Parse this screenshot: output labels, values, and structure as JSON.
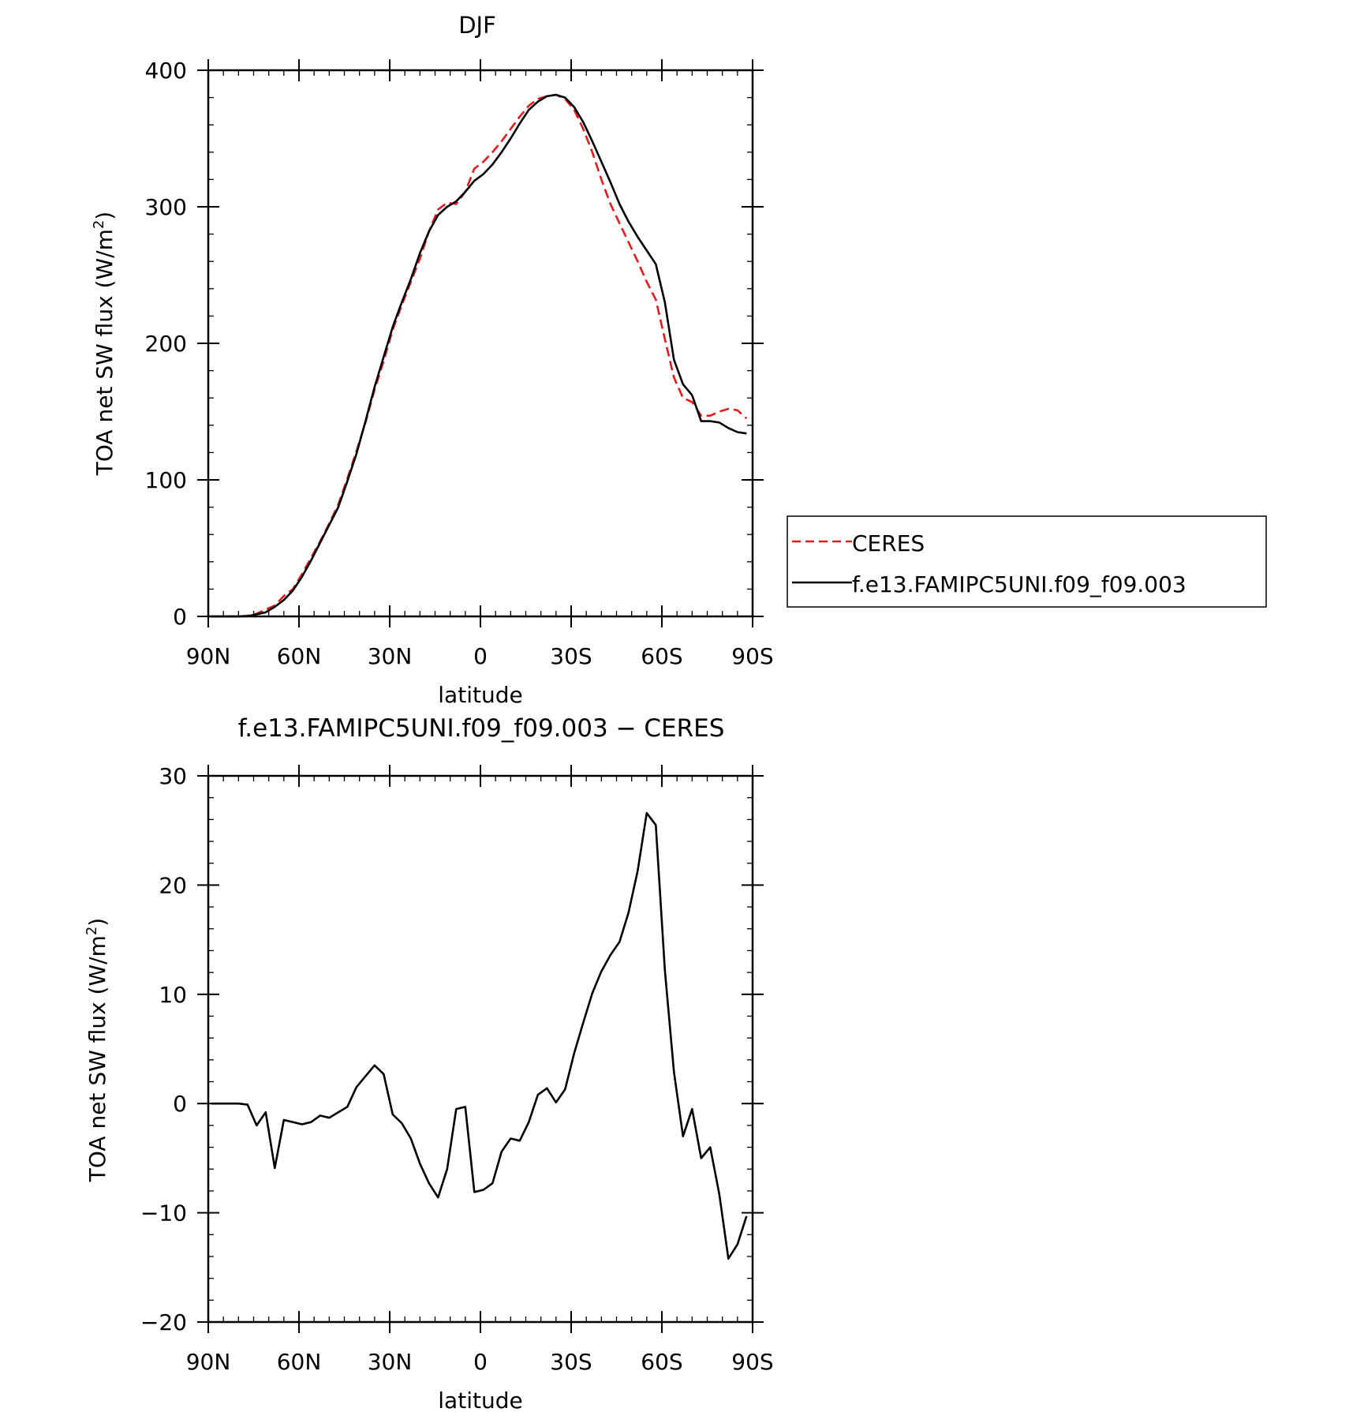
{
  "chart_data": [
    {
      "type": "line",
      "title": "DJF",
      "xlabel": "latitude",
      "ylabel": "TOA net SW flux (W/m",
      "ylabel_sup": "2",
      "ylabel_tail": ")",
      "x_reversed": true,
      "xlim": [
        90,
        -90
      ],
      "ylim": [
        0,
        400
      ],
      "x_ticks": [
        90,
        60,
        30,
        0,
        -30,
        -60,
        -90
      ],
      "x_tick_labels": [
        "90N",
        "60N",
        "30N",
        "0",
        "30S",
        "60S",
        "90S"
      ],
      "y_ticks": [
        0,
        100,
        200,
        300,
        400
      ],
      "y_tick_labels": [
        "0",
        "100",
        "200",
        "300",
        "400"
      ],
      "grid": false,
      "legend": {
        "placement": "right, outside plot",
        "entries": [
          "CERES",
          "f.e13.FAMIPC5UNI.f09_f09.003"
        ]
      },
      "series": [
        {
          "name": "CERES",
          "color": "#e41a1c",
          "dash": "dashed",
          "x": [
            89,
            86,
            83,
            80,
            77,
            74,
            71,
            68,
            65,
            62,
            59,
            56,
            53,
            50,
            47,
            44,
            41,
            38,
            35,
            32,
            29,
            26,
            23,
            20,
            17,
            14,
            11,
            8,
            5,
            2,
            -1,
            -4,
            -7,
            -10,
            -13,
            -16,
            -19,
            -22,
            -25,
            -28,
            -31,
            -34,
            -37,
            -40,
            -43,
            -46,
            -49,
            -52,
            -55,
            -58,
            -61,
            -64,
            -67,
            -70,
            -73,
            -76,
            -79,
            -82,
            -85,
            -88
          ],
          "values": [
            0,
            0,
            0,
            0,
            0.5,
            2,
            5,
            8,
            15,
            20,
            31,
            43,
            55,
            68,
            82,
            101,
            121,
            142,
            166,
            187,
            210,
            228,
            245,
            262,
            282,
            298,
            303,
            302,
            311,
            328,
            333,
            340,
            348,
            357,
            366,
            374,
            379,
            381,
            382,
            379,
            371,
            357,
            340,
            320,
            302,
            288,
            274,
            260,
            245,
            232,
            203,
            175,
            160,
            157,
            147,
            147,
            150,
            152,
            151,
            145
          ]
        },
        {
          "name": "f.e13.FAMIPC5UNI.f09_f09.003",
          "color": "#000000",
          "dash": "solid",
          "x": [
            89,
            86,
            83,
            80,
            77,
            74,
            71,
            68,
            65,
            62,
            59,
            56,
            53,
            50,
            47,
            44,
            41,
            38,
            35,
            32,
            29,
            26,
            23,
            20,
            17,
            14,
            11,
            8,
            5,
            2,
            -1,
            -4,
            -7,
            -10,
            -13,
            -16,
            -19,
            -22,
            -25,
            -28,
            -31,
            -34,
            -37,
            -40,
            -43,
            -46,
            -49,
            -52,
            -55,
            -58,
            -61,
            -64,
            -67,
            -70,
            -73,
            -76,
            -79,
            -82,
            -85,
            -88
          ],
          "values": [
            0,
            0,
            0,
            0,
            0.2,
            1.5,
            3,
            7,
            12,
            19,
            29,
            41,
            54,
            67,
            80,
            99,
            119,
            143,
            168,
            190,
            212,
            230,
            247,
            266,
            282,
            294,
            300,
            304,
            311,
            319,
            324,
            331,
            340,
            350,
            361,
            371,
            377,
            381,
            382,
            380,
            373,
            362,
            348,
            333,
            318,
            302,
            289,
            278,
            268,
            258,
            230,
            188,
            170,
            162,
            143,
            143,
            142,
            138,
            135,
            134
          ]
        }
      ]
    },
    {
      "type": "line",
      "title": "f.e13.FAMIPC5UNI.f09_f09.003 − CERES",
      "xlabel": "latitude",
      "ylabel": "TOA net SW flux (W/m",
      "ylabel_sup": "2",
      "ylabel_tail": ")",
      "x_reversed": true,
      "xlim": [
        90,
        -90
      ],
      "ylim": [
        -20,
        30
      ],
      "x_ticks": [
        90,
        60,
        30,
        0,
        -30,
        -60,
        -90
      ],
      "x_tick_labels": [
        "90N",
        "60N",
        "30N",
        "0",
        "30S",
        "60S",
        "90S"
      ],
      "y_ticks": [
        -20,
        -10,
        0,
        10,
        20,
        30
      ],
      "y_tick_labels": [
        "−20",
        "−10",
        "0",
        "10",
        "20",
        "30"
      ],
      "grid": false,
      "series": [
        {
          "color": "#000000",
          "dash": "solid",
          "x": [
            89,
            86,
            83,
            80,
            77,
            74,
            71,
            68,
            65,
            62,
            59,
            56,
            53,
            50,
            47,
            44,
            41,
            38,
            35,
            32,
            29,
            26,
            23,
            20,
            17,
            14,
            11,
            8,
            5,
            2,
            -1,
            -4,
            -7,
            -10,
            -13,
            -16,
            -19,
            -22,
            -25,
            -28,
            -31,
            -34,
            -37,
            -40,
            -43,
            -46,
            -49,
            -52,
            -55,
            -58,
            -61,
            -64,
            -67,
            -70,
            -73,
            -76,
            -79,
            -82,
            -85,
            -88
          ],
          "values": [
            0,
            0,
            0,
            0,
            -0.1,
            -2,
            -0.8,
            -5.9,
            -1.5,
            -1.7,
            -1.9,
            -1.7,
            -1.1,
            -1.3,
            -0.8,
            -0.3,
            1.5,
            2.5,
            3.5,
            2.7,
            -1,
            -1.8,
            -3.2,
            -5.5,
            -7.3,
            -8.6,
            -6,
            -0.5,
            -0.3,
            -8.1,
            -7.9,
            -7.3,
            -4.4,
            -3.2,
            -3.4,
            -1.7,
            0.8,
            1.4,
            0.1,
            1.3,
            4.6,
            7.4,
            10.1,
            12.1,
            13.6,
            14.8,
            17.5,
            21.3,
            26.6,
            25.5,
            12.2,
            2.9,
            -3,
            -0.5,
            -5,
            -4,
            -8.3,
            -14.2,
            -12.9,
            -10.3
          ]
        }
      ]
    }
  ]
}
